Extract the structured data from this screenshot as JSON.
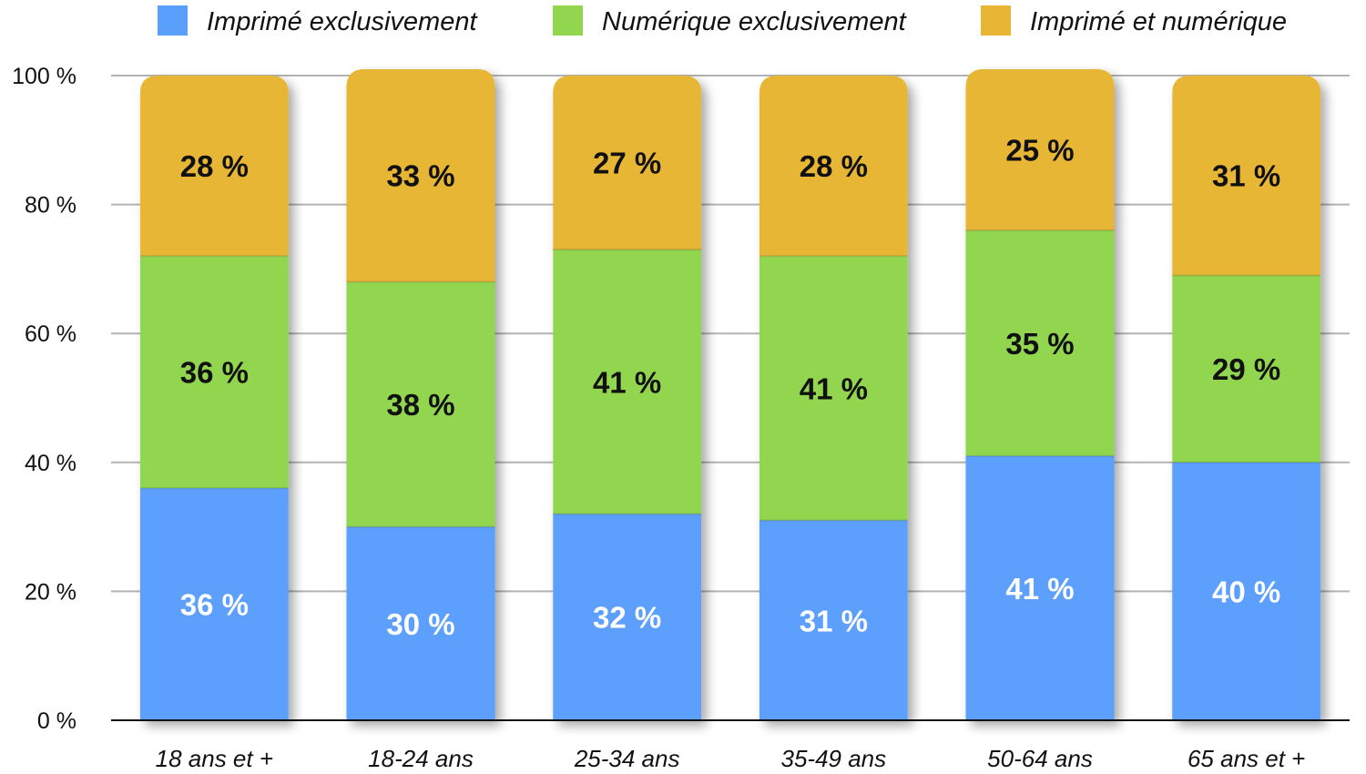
{
  "chart_data": {
    "type": "bar",
    "stacked": true,
    "categories": [
      "18 ans et +",
      "18-24 ans",
      "25-34 ans",
      "35-49 ans",
      "50-64 ans",
      "65 ans et +"
    ],
    "series": [
      {
        "name": "Imprimé exclusivement",
        "values": [
          36,
          30,
          32,
          31,
          41,
          40
        ],
        "color": "#5b9ffc",
        "labels": [
          "36 %",
          "30 %",
          "32 %",
          "31 %",
          "41 %",
          "40 %"
        ],
        "label_color": "#ffffff"
      },
      {
        "name": "Numérique exclusivement",
        "values": [
          36,
          38,
          41,
          41,
          35,
          29
        ],
        "color": "#92d650",
        "labels": [
          "36 %",
          "38 %",
          "41 %",
          "41 %",
          "35 %",
          "29 %"
        ],
        "label_color": "#111111"
      },
      {
        "name": "Imprimé et numérique",
        "values": [
          28,
          33,
          27,
          28,
          25,
          31
        ],
        "color": "#e8b634",
        "labels": [
          "28 %",
          "33 %",
          "27 %",
          "28 %",
          "25 %",
          "31 %"
        ],
        "label_color": "#111111"
      }
    ],
    "y_ticks": [
      "0 %",
      "20 %",
      "40 %",
      "60 %",
      "80 %",
      "100 %"
    ],
    "ylim": [
      0,
      100
    ],
    "grid": true,
    "legend_position": "top"
  }
}
